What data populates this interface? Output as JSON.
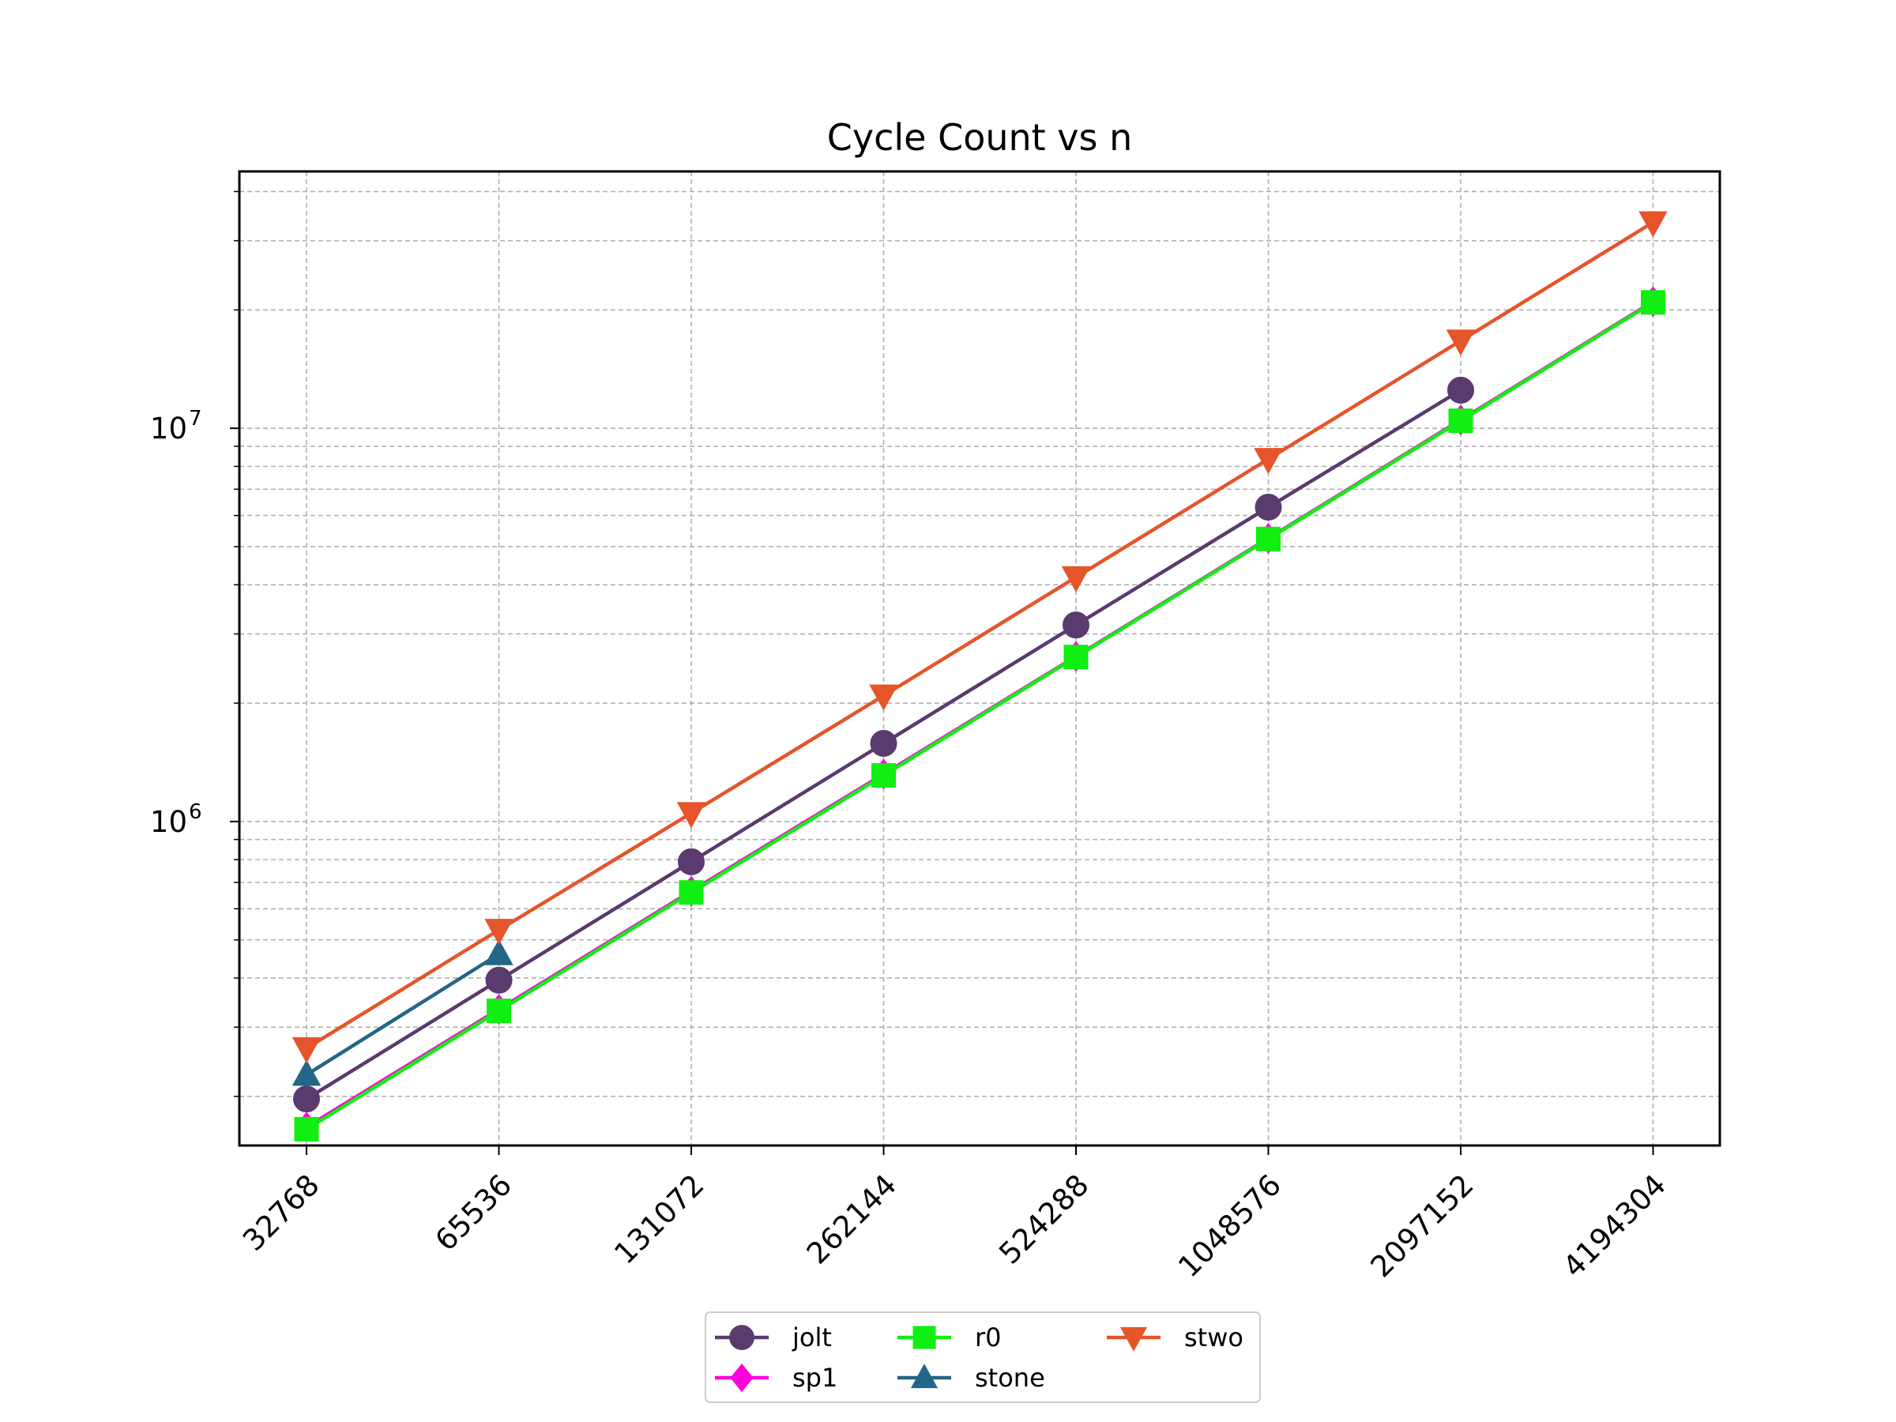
{
  "chart_data": {
    "type": "line",
    "title": "Cycle Count vs n",
    "xlabel": "",
    "ylabel": "",
    "x_scale": "categorical",
    "y_scale": "log",
    "ylim": [
      150000,
      45000000
    ],
    "grid": true,
    "legend_position": "below",
    "categories": [
      "32768",
      "65536",
      "131072",
      "262144",
      "524288",
      "1048576",
      "2097152",
      "4194304"
    ],
    "y_ticks": [
      {
        "base": "10",
        "exp": "6",
        "value": 1000000
      },
      {
        "base": "10",
        "exp": "7",
        "value": 10000000
      }
    ],
    "series": [
      {
        "name": "jolt",
        "color": "#5b3a6e",
        "marker": "circle",
        "values": [
          197000,
          395000,
          790000,
          1580000,
          3160000,
          6300000,
          12500000,
          null
        ]
      },
      {
        "name": "sp1",
        "color": "#ff00dd",
        "marker": "diamond",
        "values": [
          167000,
          333000,
          665000,
          1320000,
          2630000,
          5250000,
          10500000,
          21000000
        ]
      },
      {
        "name": "r0",
        "color": "#11ee11",
        "marker": "square",
        "values": [
          165000,
          330000,
          660000,
          1310000,
          2620000,
          5230000,
          10450000,
          20900000
        ]
      },
      {
        "name": "stone",
        "color": "#226688",
        "marker": "triangle-up",
        "values": [
          227000,
          460000,
          null,
          null,
          null,
          null,
          null,
          null
        ]
      },
      {
        "name": "stwo",
        "color": "#e6542a",
        "marker": "triangle-down",
        "values": [
          265000,
          530000,
          1050000,
          2090000,
          4180000,
          8350000,
          16700000,
          33400000
        ]
      }
    ]
  }
}
